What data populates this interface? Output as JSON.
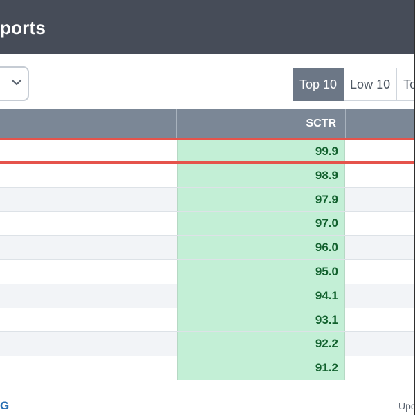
{
  "header": {
    "title": "ports"
  },
  "toolbar": {
    "dropdown_icon": "chevron-down-icon",
    "tabs": [
      {
        "label": "Top 10",
        "active": true
      },
      {
        "label": "Low 10",
        "active": false
      },
      {
        "label": "To",
        "active": false
      }
    ]
  },
  "table": {
    "columns": [
      {
        "label": ""
      },
      {
        "label": "SCTR"
      },
      {
        "label": ""
      }
    ],
    "rows": [
      {
        "sctr": "99.9",
        "highlighted": true
      },
      {
        "sctr": "98.9"
      },
      {
        "sctr": "97.9"
      },
      {
        "sctr": "97.0"
      },
      {
        "sctr": "96.0"
      },
      {
        "sctr": "95.0"
      },
      {
        "sctr": "94.1"
      },
      {
        "sctr": "93.1"
      },
      {
        "sctr": "92.2"
      },
      {
        "sctr": "91.2"
      }
    ]
  },
  "footer": {
    "left_text": "G",
    "right_text": "Upd"
  },
  "colors": {
    "header_bg": "#464c58",
    "table_head_bg": "#7b8796",
    "sctr_cell_bg": "#c3efd6",
    "sctr_text": "#12612e",
    "highlight": "#e5534b",
    "active_tab_bg": "#6c7786"
  }
}
